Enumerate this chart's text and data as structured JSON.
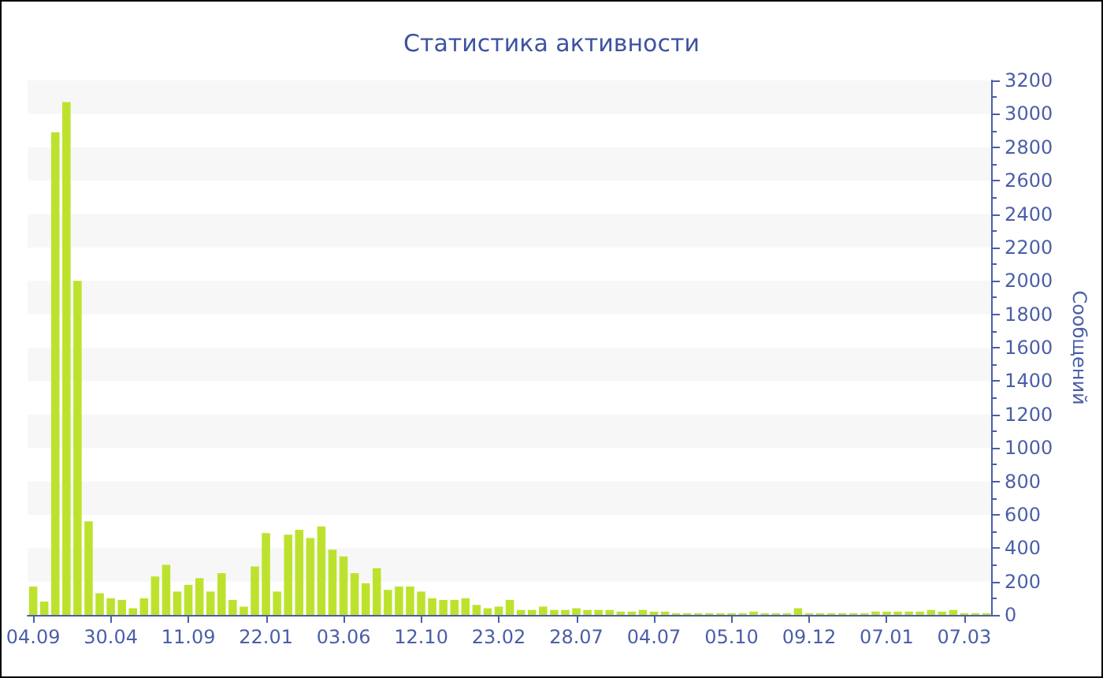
{
  "chart_data": {
    "type": "bar",
    "title": "Статистика активности",
    "ylabel": "Сообщений",
    "categories": [
      "04.09",
      null,
      null,
      null,
      null,
      null,
      null,
      "30.04",
      null,
      null,
      null,
      null,
      null,
      null,
      "11.09",
      null,
      null,
      null,
      null,
      null,
      null,
      "22.01",
      null,
      null,
      null,
      null,
      null,
      null,
      "03.06",
      null,
      null,
      null,
      null,
      null,
      null,
      "12.10",
      null,
      null,
      null,
      null,
      null,
      null,
      "23.02",
      null,
      null,
      null,
      null,
      null,
      null,
      "28.07",
      null,
      null,
      null,
      null,
      null,
      null,
      "04.07",
      null,
      null,
      null,
      null,
      null,
      null,
      "05.10",
      null,
      null,
      null,
      null,
      null,
      null,
      "09.12",
      null,
      null,
      null,
      null,
      null,
      null,
      "07.01",
      null,
      null,
      null,
      null,
      null,
      null,
      "07.03",
      null,
      null
    ],
    "values": [
      170,
      80,
      2890,
      3070,
      2000,
      560,
      130,
      100,
      90,
      40,
      100,
      230,
      300,
      140,
      180,
      220,
      140,
      250,
      90,
      50,
      290,
      490,
      140,
      480,
      510,
      460,
      530,
      390,
      350,
      250,
      190,
      280,
      150,
      170,
      170,
      140,
      100,
      90,
      90,
      100,
      60,
      40,
      50,
      90,
      30,
      30,
      50,
      30,
      30,
      40,
      30,
      30,
      30,
      20,
      20,
      30,
      20,
      20,
      10,
      10,
      10,
      10,
      10,
      10,
      10,
      20,
      10,
      10,
      10,
      40,
      10,
      10,
      10,
      10,
      10,
      10,
      20,
      20,
      20,
      20,
      20,
      30,
      20,
      30,
      10,
      10,
      10
    ],
    "color": "#bde22e",
    "ylim": [
      0,
      3200
    ],
    "yticks": [
      0,
      200,
      400,
      600,
      800,
      1000,
      1200,
      1400,
      1600,
      1800,
      2000,
      2200,
      2400,
      2600,
      2800,
      3000,
      3200
    ],
    "bands": [
      {
        "axis": "y",
        "from": 200,
        "to": 400,
        "color": "#f7f7f7"
      },
      {
        "axis": "y",
        "from": 600,
        "to": 800,
        "color": "#f7f7f7"
      },
      {
        "axis": "y",
        "from": 1000,
        "to": 1200,
        "color": "#f7f7f7"
      },
      {
        "axis": "y",
        "from": 1400,
        "to": 1600,
        "color": "#f7f7f7"
      },
      {
        "axis": "y",
        "from": 1800,
        "to": 2000,
        "color": "#f7f7f7"
      },
      {
        "axis": "y",
        "from": 2200,
        "to": 2400,
        "color": "#f7f7f7"
      },
      {
        "axis": "y",
        "from": 2600,
        "to": 2800,
        "color": "#f7f7f7"
      },
      {
        "axis": "y",
        "from": 3000,
        "to": 3200,
        "color": "#f7f7f7"
      }
    ]
  }
}
